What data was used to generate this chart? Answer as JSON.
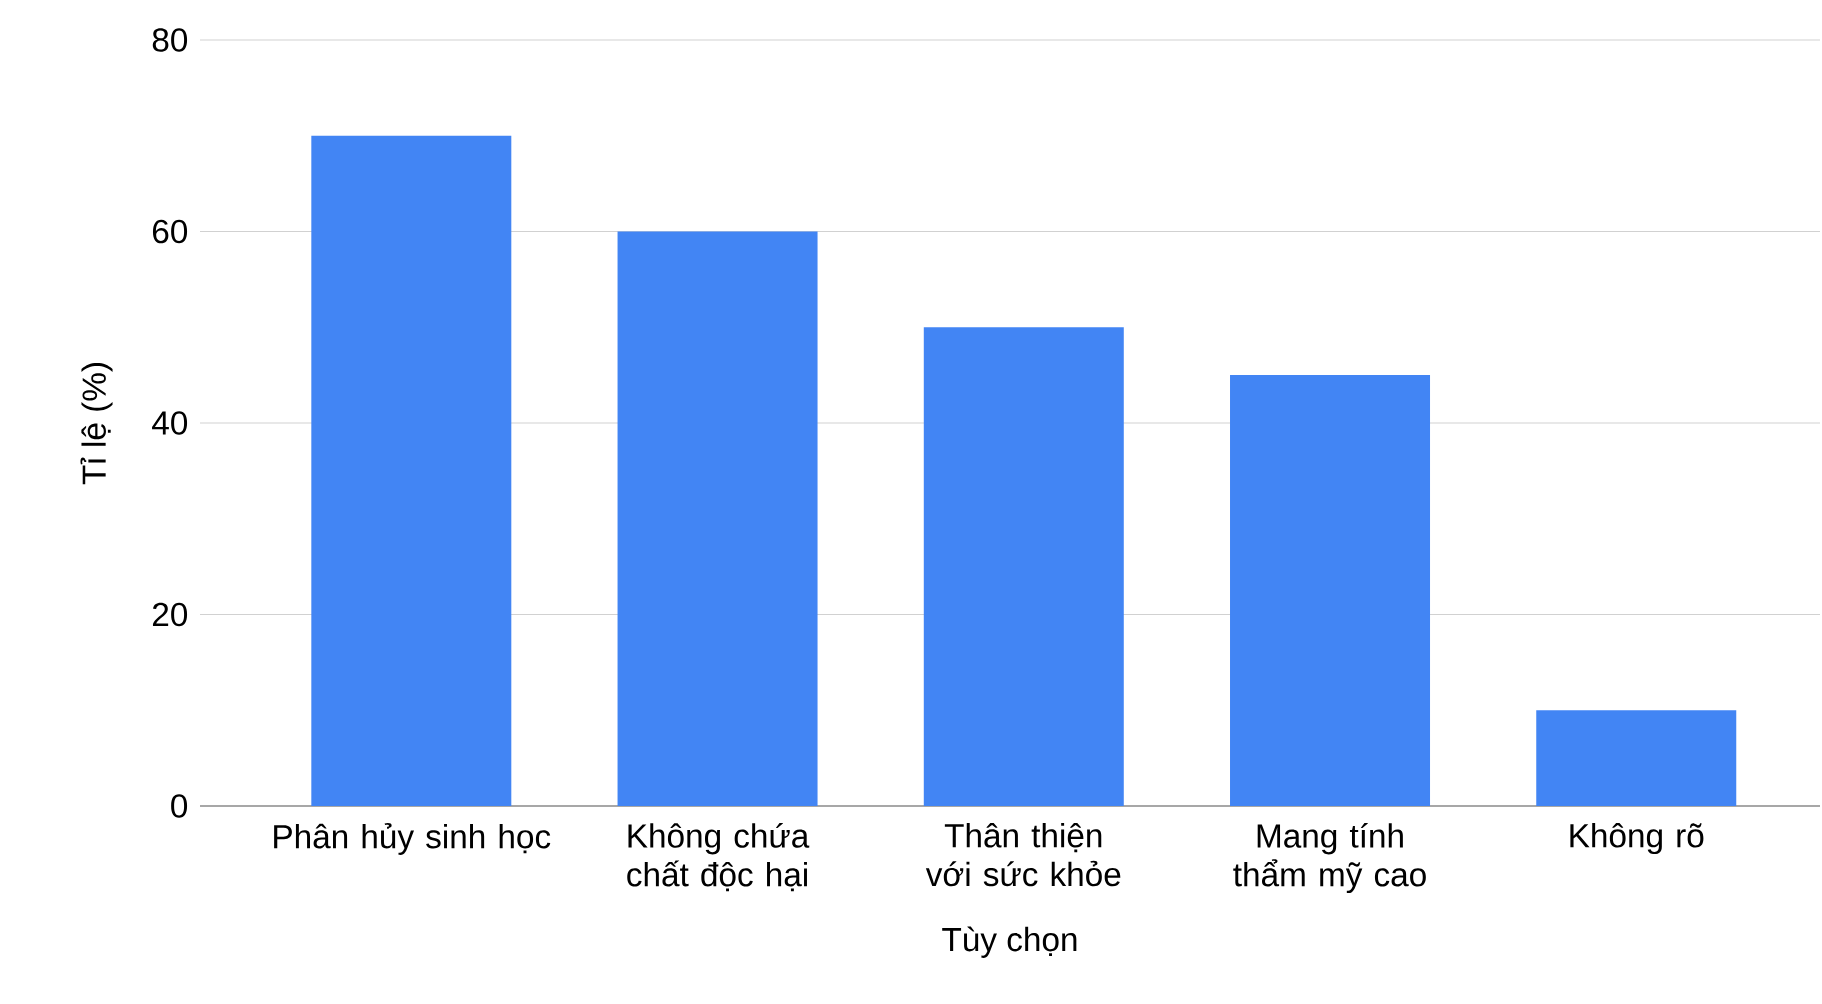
{
  "chart_data": {
    "type": "bar",
    "xlabel": "Tùy chọn",
    "ylabel": "Tỉ lệ (%)",
    "categories": [
      "Phân hủy sinh học",
      "Không chứa chất độc hại",
      "Thân thiện với sức khỏe",
      "Mang tính thẩm mỹ cao",
      "Không rõ"
    ],
    "values": [
      70,
      60,
      50,
      45,
      10
    ],
    "color": "#4285f4",
    "ylim": [
      0,
      80
    ],
    "yticks": [
      0,
      20,
      40,
      60,
      80
    ],
    "grid": "y"
  }
}
